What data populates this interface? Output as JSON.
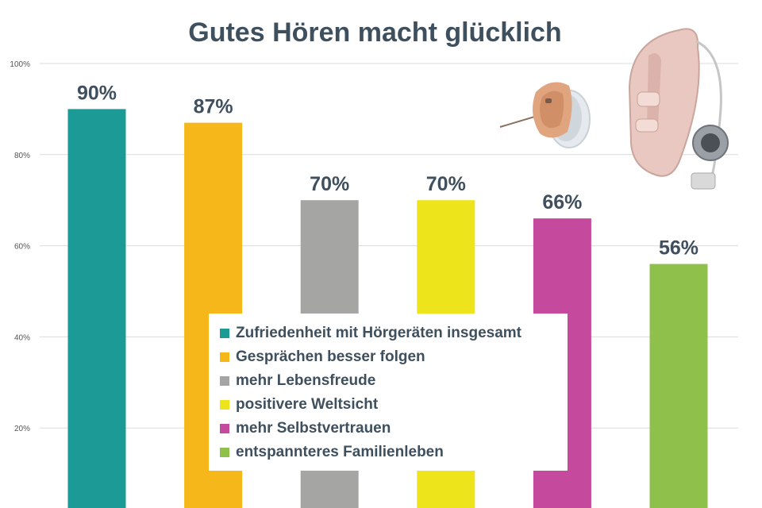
{
  "chart_data": {
    "type": "bar",
    "title": "Gutes Hören macht glücklich",
    "categories": [
      "Zufriedenheit mit Hörgeräten insgesamt",
      "Gesprächen besser folgen",
      "mehr Lebensfreude",
      "positivere Weltsicht",
      "mehr Selbstvertrauen",
      "entspannteres Familienleben"
    ],
    "values": [
      90,
      87,
      70,
      70,
      66,
      56
    ],
    "data_labels": [
      "90%",
      "87%",
      "70%",
      "70%",
      "66%",
      "56%"
    ],
    "colors": [
      "#1c9a96",
      "#f5b719",
      "#a5a5a3",
      "#eee41c",
      "#c54a9e",
      "#8fc04c"
    ],
    "ylim": [
      0,
      100
    ],
    "yticks": [
      {
        "value": 20,
        "label": "20%"
      },
      {
        "value": 40,
        "label": "40%"
      },
      {
        "value": 60,
        "label": "60%"
      },
      {
        "value": 80,
        "label": "80%"
      },
      {
        "value": 100,
        "label": "100%"
      }
    ],
    "grid": true,
    "legend_position": "bottom-center",
    "xlabel": "",
    "ylabel": ""
  },
  "images": {
    "left": "in-ear-hearing-aid-icon",
    "right": "behind-ear-hearing-aid-icon"
  }
}
